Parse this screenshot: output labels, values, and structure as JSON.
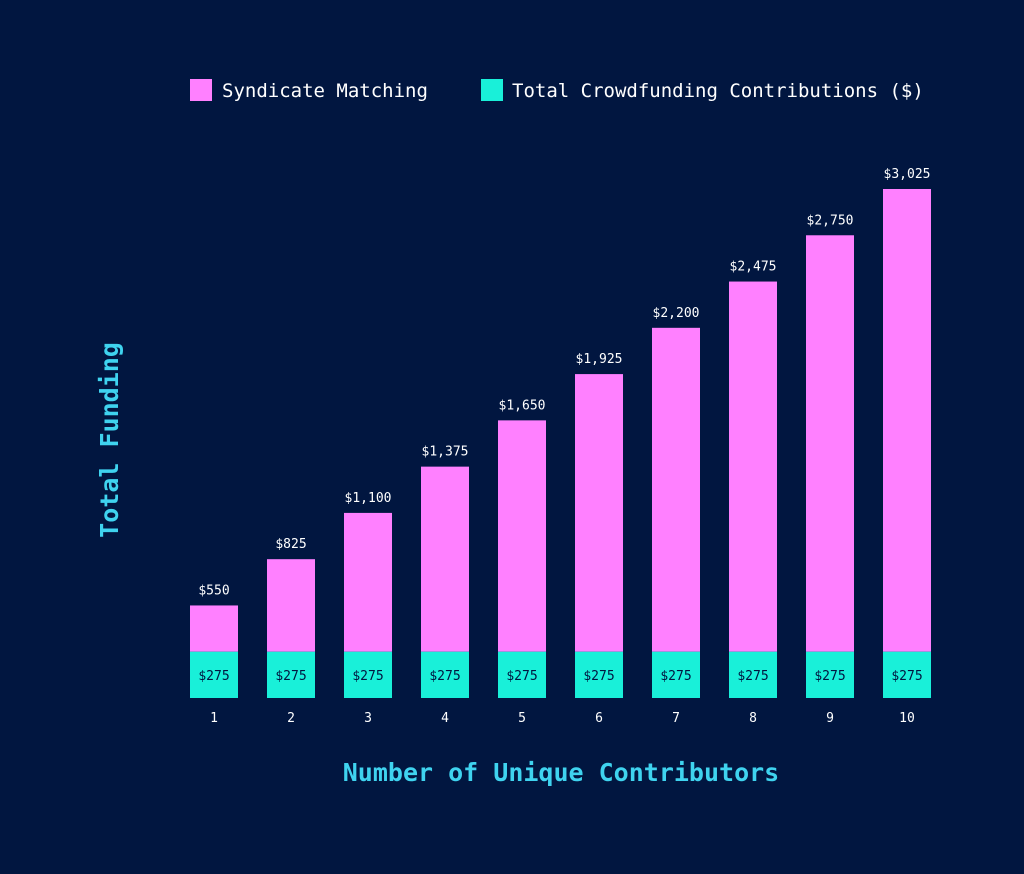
{
  "colors": {
    "background": "#011640",
    "syndicate": "#ff80ff",
    "crowdfunding": "#19f0d9",
    "axis_title": "#3fd3ef",
    "text": "#ffffff"
  },
  "chart_data": {
    "type": "bar",
    "stacked": true,
    "title": "",
    "xlabel": "Number of Unique Contributors",
    "ylabel": "Total Funding",
    "categories": [
      "1",
      "2",
      "3",
      "4",
      "5",
      "6",
      "7",
      "8",
      "9",
      "10"
    ],
    "series": [
      {
        "name": "Total Crowdfunding Contributions ($)",
        "color": "#19f0d9",
        "values": [
          275,
          275,
          275,
          275,
          275,
          275,
          275,
          275,
          275,
          275
        ],
        "labels": [
          "$275",
          "$275",
          "$275",
          "$275",
          "$275",
          "$275",
          "$275",
          "$275",
          "$275",
          "$275"
        ]
      },
      {
        "name": "Syndicate Matching",
        "color": "#ff80ff",
        "values": [
          275,
          550,
          825,
          1100,
          1375,
          1650,
          1925,
          2200,
          2475,
          2750
        ]
      }
    ],
    "totals": [
      550,
      825,
      1100,
      1375,
      1650,
      1925,
      2200,
      2475,
      2750,
      3025
    ],
    "total_labels": [
      "$550",
      "$825",
      "$1,100",
      "$1,375",
      "$1,650",
      "$1,925",
      "$2,200",
      "$2,475",
      "$2,750",
      "$3,025"
    ],
    "ylim": [
      0,
      3025
    ],
    "grid": false,
    "legend": {
      "position": "top",
      "items": [
        "Syndicate Matching",
        "Total Crowdfunding Contributions ($)"
      ]
    }
  }
}
